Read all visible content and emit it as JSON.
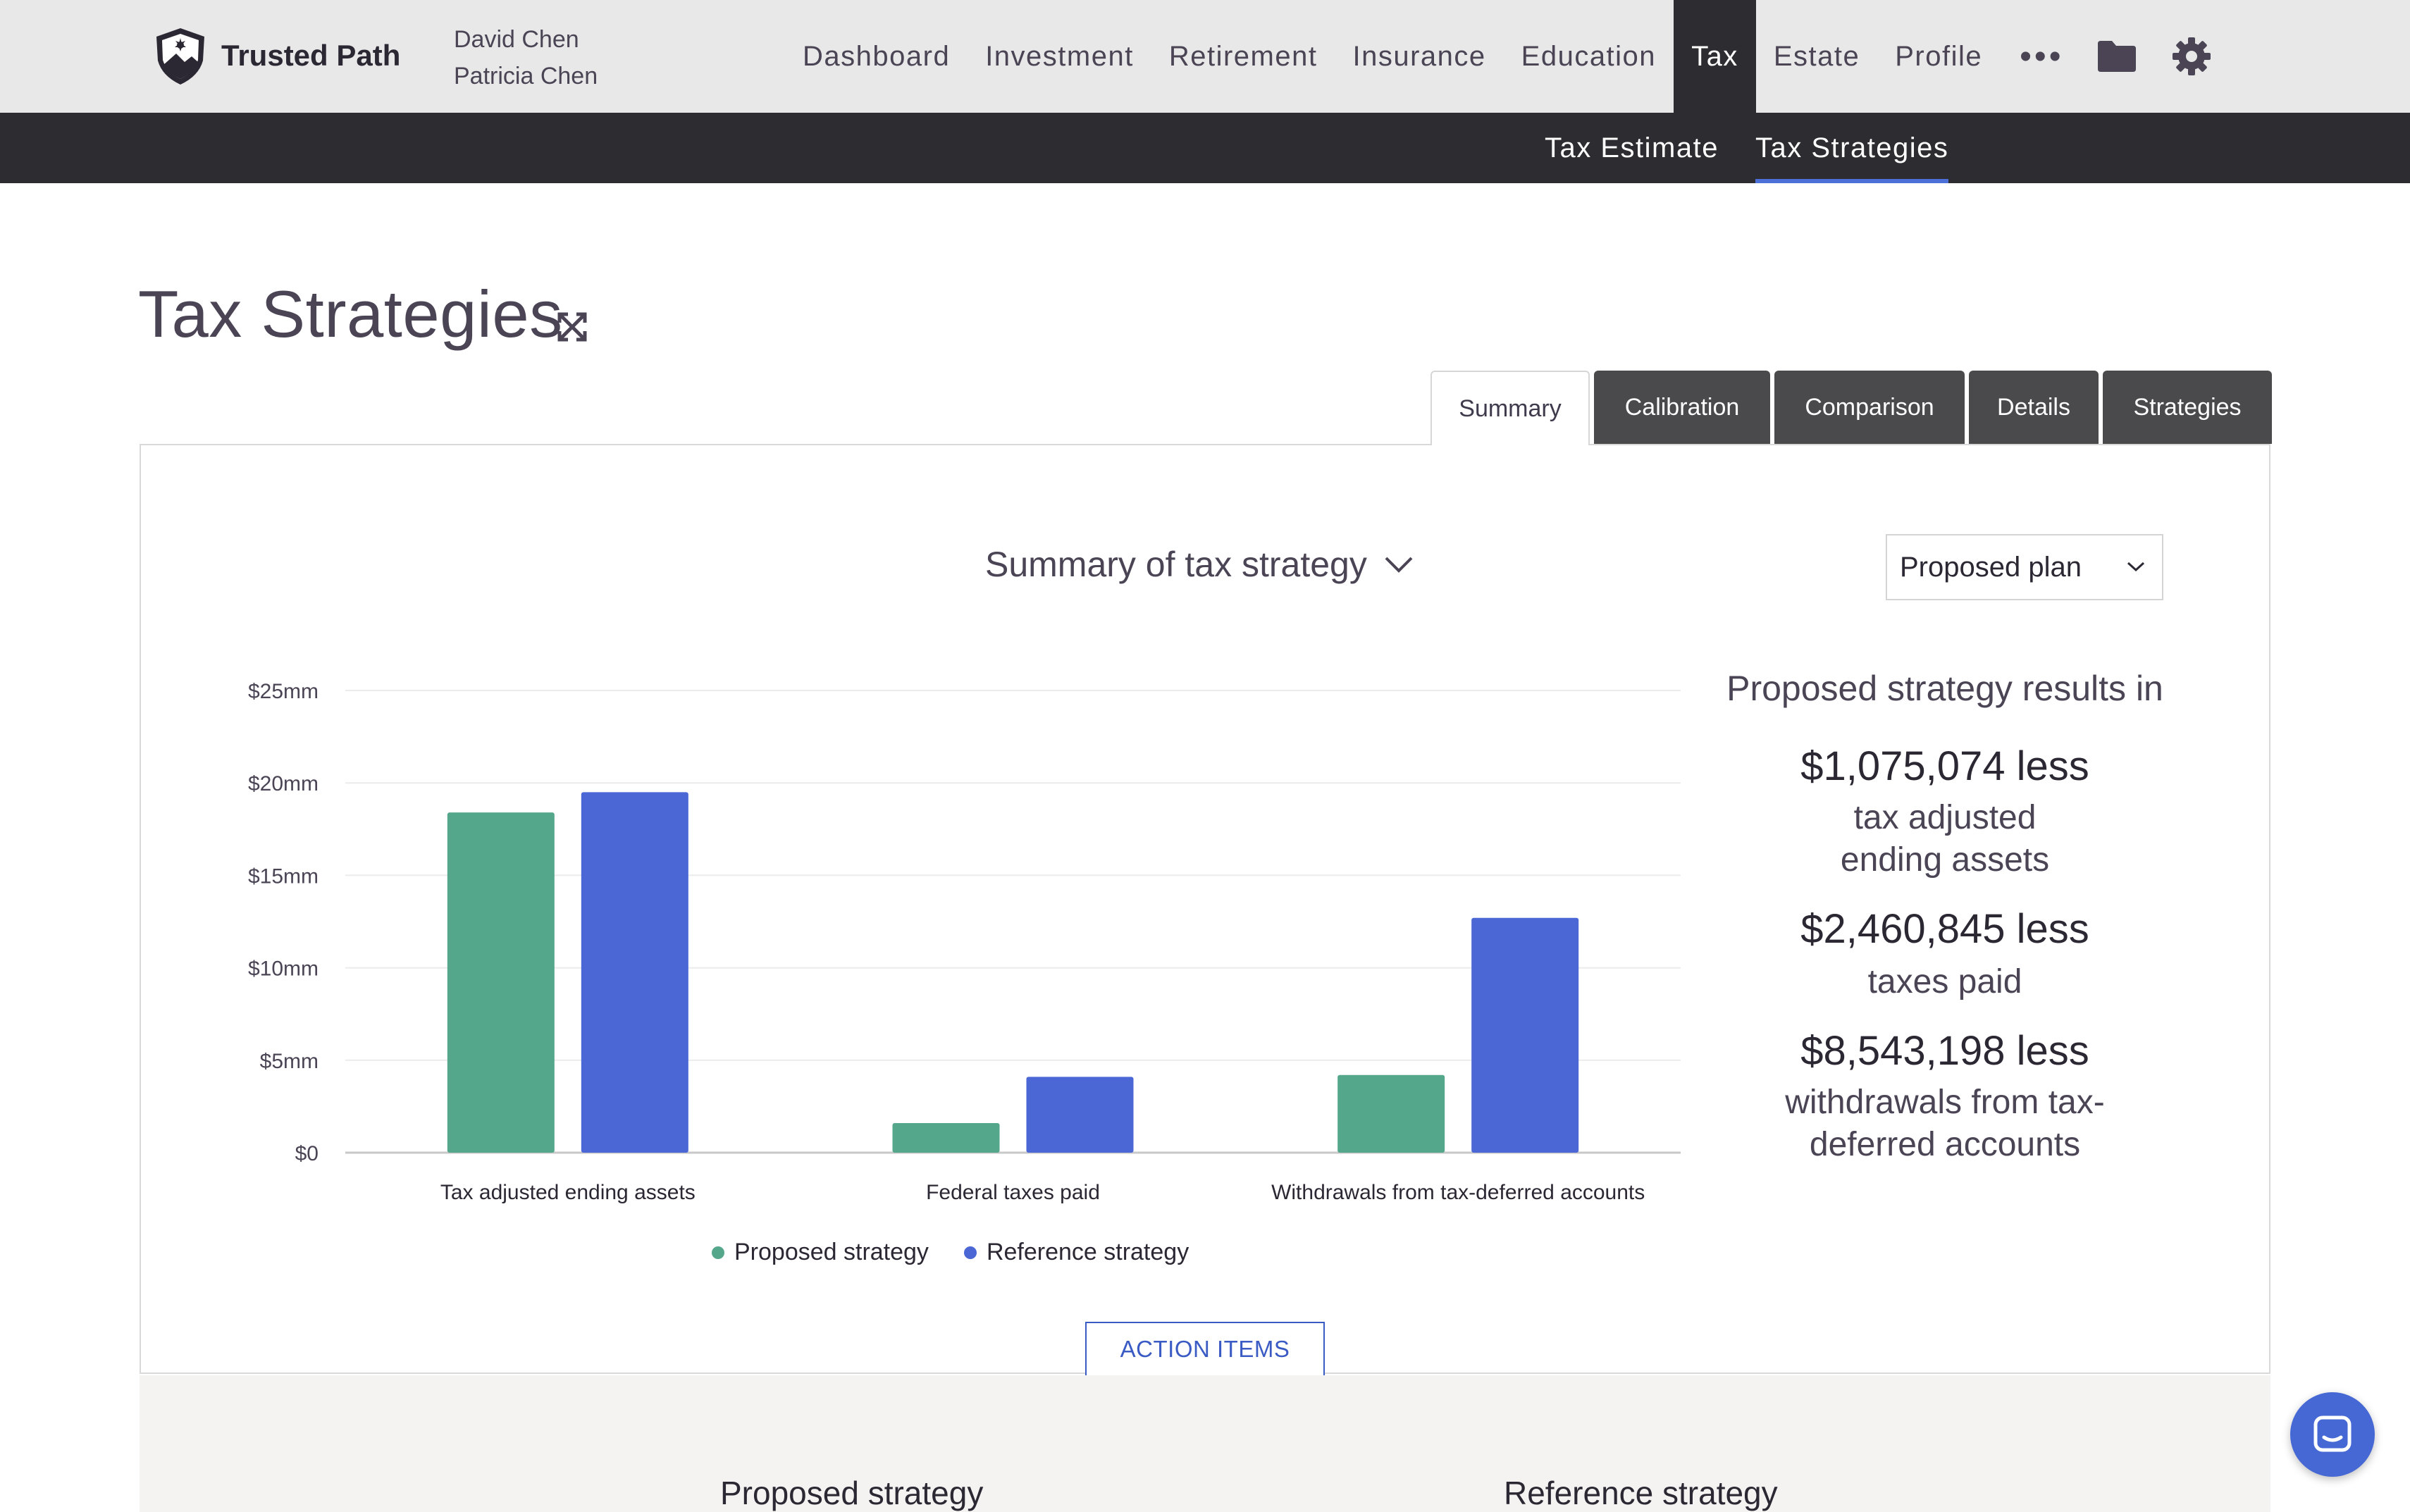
{
  "app": {
    "brand": "Trusted Path",
    "clients": [
      "David Chen",
      "Patricia Chen"
    ]
  },
  "nav": {
    "items": [
      {
        "label": "Dashboard",
        "active": false
      },
      {
        "label": "Investment",
        "active": false
      },
      {
        "label": "Retirement",
        "active": false
      },
      {
        "label": "Insurance",
        "active": false
      },
      {
        "label": "Education",
        "active": false
      },
      {
        "label": "Tax",
        "active": true
      },
      {
        "label": "Estate",
        "active": false
      },
      {
        "label": "Profile",
        "active": false
      }
    ],
    "more_label": "•••",
    "icons": [
      "folder-icon",
      "gear-icon"
    ]
  },
  "subnav": {
    "items": [
      {
        "label": "Tax Estimate",
        "active": false
      },
      {
        "label": "Tax Strategies",
        "active": true
      }
    ]
  },
  "page": {
    "title": "Tax Strategies",
    "tabs": [
      {
        "label": "Summary",
        "active": true
      },
      {
        "label": "Calibration",
        "active": false
      },
      {
        "label": "Comparison",
        "active": false
      },
      {
        "label": "Details",
        "active": false
      },
      {
        "label": "Strategies",
        "active": false
      }
    ]
  },
  "summary": {
    "title": "Summary of tax strategy",
    "plan_select_value": "Proposed plan",
    "results_heading": "Proposed strategy results in",
    "results": [
      {
        "amount": "$1,075,074 less",
        "label": "tax adjusted ending assets"
      },
      {
        "amount": "$2,460,845 less",
        "label": "taxes paid"
      },
      {
        "amount": "$8,543,198 less",
        "label": "withdrawals from tax-deferred accounts"
      }
    ],
    "action_button": "ACTION ITEMS"
  },
  "chart_data": {
    "type": "bar",
    "categories": [
      "Tax adjusted ending assets",
      "Federal taxes paid",
      "Withdrawals from tax-deferred accounts"
    ],
    "series": [
      {
        "name": "Proposed strategy",
        "color": "#55a78b",
        "values": [
          18.4,
          1.6,
          4.2
        ]
      },
      {
        "name": "Reference strategy",
        "color": "#4a67d5",
        "values": [
          19.5,
          4.1,
          12.7
        ]
      }
    ],
    "yticks": [
      "$0",
      "$5mm",
      "$10mm",
      "$15mm",
      "$20mm",
      "$25mm"
    ],
    "ylim": [
      0,
      25
    ],
    "ylabel_unit": "$mm",
    "grid": true,
    "legend_position": "bottom-center"
  },
  "bottom": {
    "col_left": "Proposed strategy",
    "col_right": "Reference strategy"
  },
  "colors": {
    "nav_active": "#2d2c30",
    "accent_blue": "#4c6fd8",
    "proposed": "#55a78b",
    "reference": "#4a67d5"
  }
}
